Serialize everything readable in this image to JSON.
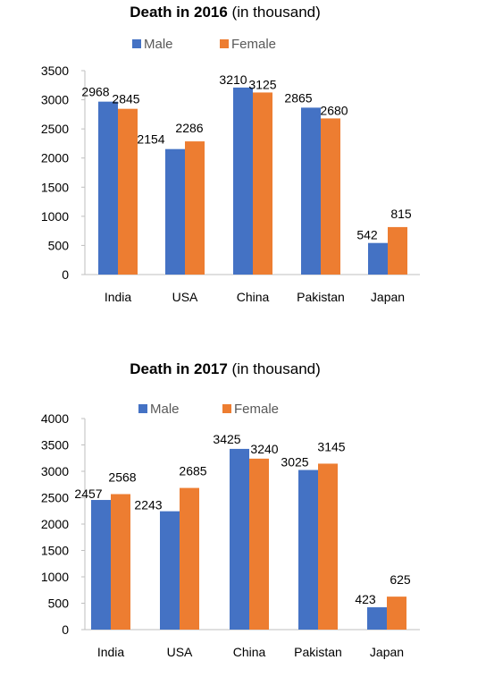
{
  "chart_data": [
    {
      "type": "bar",
      "title": "Death in 2016",
      "subtitle": "(in thousand)",
      "categories": [
        "India",
        "USA",
        "China",
        "Pakistan",
        "Japan"
      ],
      "series": [
        {
          "name": "Male",
          "color": "#4472C4",
          "values": [
            2968,
            2154,
            3210,
            2865,
            542
          ]
        },
        {
          "name": "Female",
          "color": "#ED7D31",
          "values": [
            2845,
            2286,
            3125,
            2680,
            815
          ]
        }
      ],
      "ylim": [
        0,
        3500
      ],
      "yticks": [
        0,
        500,
        1000,
        1500,
        2000,
        2500,
        3000,
        3500
      ],
      "xlabel": "",
      "ylabel": "",
      "grid": false,
      "legend": "top-center"
    },
    {
      "type": "bar",
      "title": "Death in 2017",
      "subtitle": "(in thousand)",
      "categories": [
        "India",
        "USA",
        "China",
        "Pakistan",
        "Japan"
      ],
      "series": [
        {
          "name": "Male",
          "color": "#4472C4",
          "values": [
            2457,
            2243,
            3425,
            3025,
            423
          ]
        },
        {
          "name": "Female",
          "color": "#ED7D31",
          "values": [
            2568,
            2685,
            3240,
            3145,
            625
          ]
        }
      ],
      "ylim": [
        0,
        4000
      ],
      "yticks": [
        0,
        500,
        1000,
        1500,
        2000,
        2500,
        3000,
        3500,
        4000
      ],
      "xlabel": "",
      "ylabel": "",
      "grid": false,
      "legend": "top-center"
    }
  ]
}
